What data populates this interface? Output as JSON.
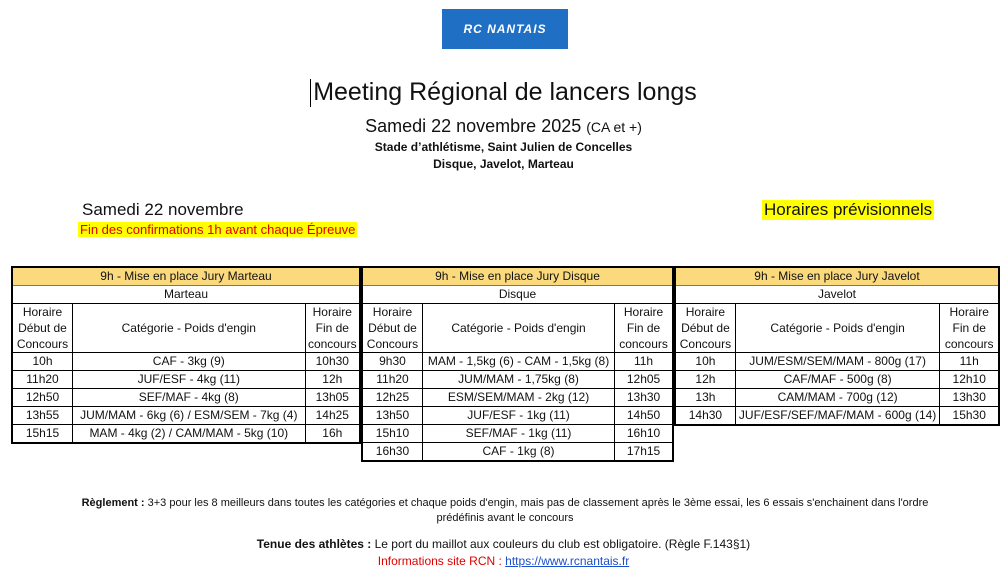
{
  "logo": {
    "text": "RC NANTAIS",
    "brand_color": "#1f6fc5"
  },
  "header": {
    "title": "Meeting Régional de lancers longs",
    "subtitle": "Samedi 22 novembre 2025",
    "subtitle_note": "(CA et +)",
    "venue": "Stade d’athlétisme, Saint Julien de Concelles",
    "events": "Disque, Javelot, Marteau"
  },
  "date_label": "Samedi 22 novembre",
  "confirmation_note": "Fin des confirmations 1h avant chaque Épreuve",
  "horaires_label": "Horaires prévisionnels",
  "col_headers": {
    "start": [
      "Horaire",
      "Début de",
      "Concours"
    ],
    "category": "Catégorie - Poids d'engin",
    "end": [
      "Horaire",
      "Fin de",
      "concours"
    ]
  },
  "tables": [
    {
      "jury": "9h - Mise en place Jury Marteau",
      "name": "Marteau",
      "rows": [
        [
          "10h",
          "CAF - 3kg (9)",
          "10h30"
        ],
        [
          "11h20",
          "JUF/ESF - 4kg (11)",
          "12h"
        ],
        [
          "12h50",
          "SEF/MAF - 4kg (8)",
          "13h05"
        ],
        [
          "13h55",
          "JUM/MAM - 6kg (6) / ESM/SEM - 7kg (4)",
          "14h25"
        ],
        [
          "15h15",
          "MAM - 4kg (2) / CAM/MAM - 5kg (10)",
          "16h"
        ]
      ]
    },
    {
      "jury": "9h - Mise en place Jury Disque",
      "name": "Disque",
      "rows": [
        [
          "9h30",
          "MAM - 1,5kg (6) - CAM - 1,5kg (8)",
          "11h"
        ],
        [
          "11h20",
          "JUM/MAM - 1,75kg (8)",
          "12h05"
        ],
        [
          "12h25",
          "ESM/SEM/MAM - 2kg (12)",
          "13h30"
        ],
        [
          "13h50",
          "JUF/ESF - 1kg (11)",
          "14h50"
        ],
        [
          "15h10",
          "SEF/MAF - 1kg (11)",
          "16h10"
        ],
        [
          "16h30",
          "CAF - 1kg (8)",
          "17h15"
        ]
      ]
    },
    {
      "jury": "9h - Mise en place Jury Javelot",
      "name": "Javelot",
      "rows": [
        [
          "10h",
          "JUM/ESM/SEM/MAM - 800g (17)",
          "11h"
        ],
        [
          "12h",
          "CAF/MAF - 500g (8)",
          "12h10"
        ],
        [
          "13h",
          "CAM/MAM - 700g (12)",
          "13h30"
        ],
        [
          "14h30",
          "JUF/ESF/SEF/MAF/MAM - 600g (14)",
          "15h30"
        ]
      ]
    }
  ],
  "footer": {
    "reglement_label": "Règlement :",
    "reglement_text": "3+3 pour les 8 meilleurs dans toutes les catégories et chaque poids d'engin, mais pas de classement après le 3ème essai, les 6 essais s'enchainent dans l'ordre prédéfinis avant le concours",
    "tenue_label": "Tenue des athlètes :",
    "tenue_text": "Le port du maillot aux couleurs du club est obligatoire. (Règle F.143§1)",
    "info_label": "Informations site RCN :",
    "info_link": "https://www.rcnantais.fr"
  }
}
